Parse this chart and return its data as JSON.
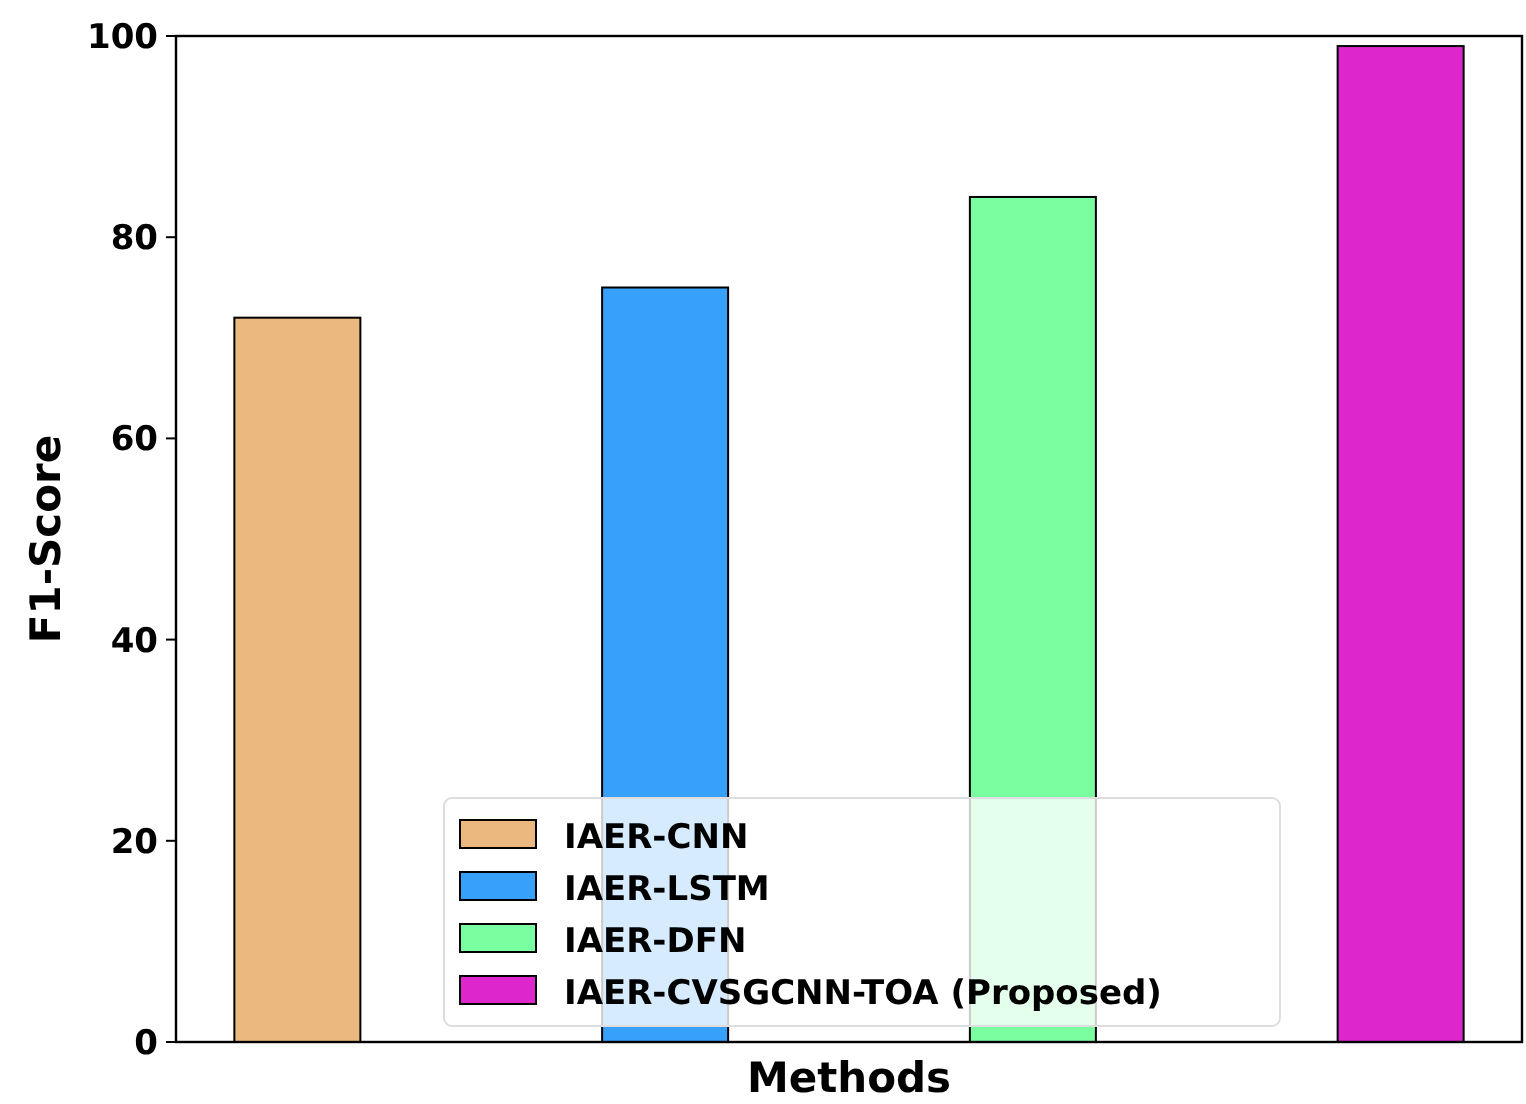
{
  "chart_data": {
    "type": "bar",
    "xlabel": "Methods",
    "ylabel": "F1-Score",
    "categories": [
      null,
      null,
      null,
      null
    ],
    "stacked": true,
    "series": [
      {
        "name": "IAER-CNN",
        "color": "#ebb97f",
        "values": [
          72,
          null,
          null,
          null
        ]
      },
      {
        "name": "IAER-LSTM",
        "color": "#36a0fb",
        "values": [
          null,
          75,
          null,
          null
        ]
      },
      {
        "name": "IAER-DFN",
        "color": "#7affa0",
        "values": [
          null,
          null,
          84,
          null
        ]
      },
      {
        "name": "IAER-CVSGCNN-TOA (Proposed)",
        "color": "#dd26cc",
        "values": [
          null,
          null,
          null,
          99
        ]
      }
    ],
    "ylim": [
      0,
      100
    ],
    "yticks": [
      0,
      20,
      40,
      60,
      80,
      100
    ],
    "tick_labels": "y",
    "legend": "bottom"
  }
}
